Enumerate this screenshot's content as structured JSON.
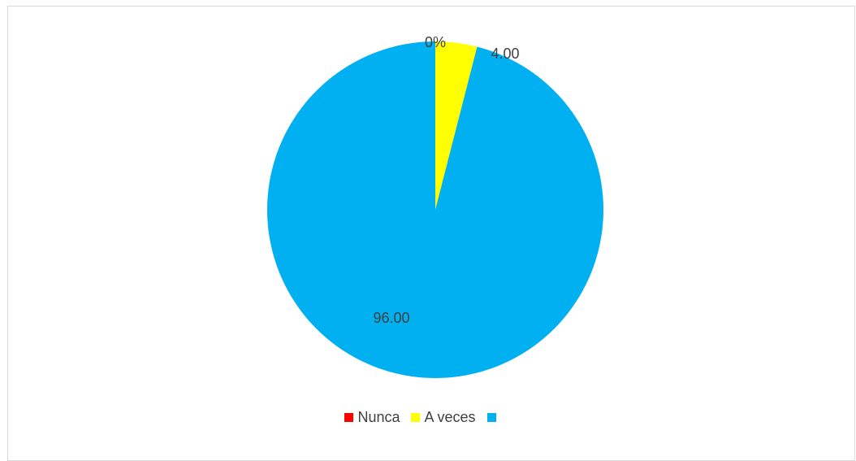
{
  "chart_data": {
    "type": "pie",
    "slices": [
      {
        "label": "Nunca",
        "value": 0,
        "color": "#ff0000",
        "data_label": "0%"
      },
      {
        "label": "A veces",
        "value": 4.0,
        "color": "#ffff00",
        "data_label": "4.00"
      },
      {
        "label": "",
        "value": 96.0,
        "color": "#00b0f0",
        "data_label": "96.00"
      }
    ],
    "legend": {
      "position": "bottom",
      "entries": [
        {
          "label": "Nunca",
          "color": "#ff0000"
        },
        {
          "label": "A veces",
          "color": "#ffff00"
        },
        {
          "label": "",
          "color": "#00b0f0"
        }
      ]
    }
  }
}
